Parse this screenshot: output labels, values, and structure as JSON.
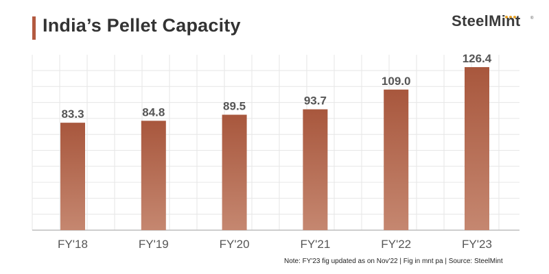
{
  "header": {
    "title": "India’s Pellet Capacity",
    "logo_text": "SteelMint",
    "logo_mark": "®"
  },
  "footer": {
    "note": "Note: FY'23 fig updated as on Nov'22  |  Fig in mnt pa  |  Source: SteelMint"
  },
  "colors": {
    "bar_top": "#a8573d",
    "bar_bottom": "#c58770",
    "label": "#555555",
    "axis_tick": "#555555",
    "grid": "#e6e6e6",
    "accent": "#b35a40"
  },
  "chart_data": {
    "type": "bar",
    "title": "India’s Pellet Capacity",
    "categories": [
      "FY'18",
      "FY'19",
      "FY'20",
      "FY'21",
      "FY'22",
      "FY'23"
    ],
    "values": [
      83.3,
      84.8,
      89.5,
      93.7,
      109.0,
      126.4
    ],
    "value_labels": [
      "83.3",
      "84.8",
      "89.5",
      "93.7",
      "109.0",
      "126.4"
    ],
    "ylim": [
      0,
      130
    ],
    "grid": true,
    "unit": "mnt pa"
  }
}
